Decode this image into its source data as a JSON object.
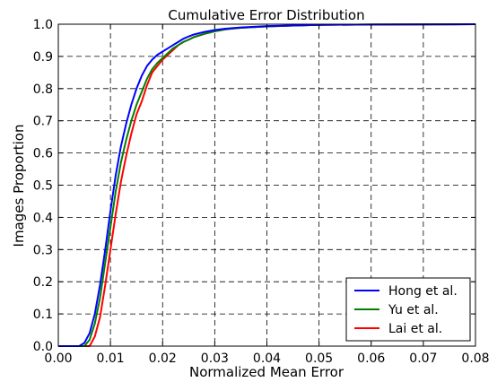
{
  "chart_data": {
    "type": "line",
    "title": "Cumulative Error Distribution",
    "xlabel": "Normalized Mean Error",
    "ylabel": "Images Proportion",
    "xlim": [
      0.0,
      0.08
    ],
    "ylim": [
      0.0,
      1.0
    ],
    "xticks": [
      "0.00",
      "0.01",
      "0.02",
      "0.03",
      "0.04",
      "0.05",
      "0.06",
      "0.07",
      "0.08"
    ],
    "yticks": [
      "0.0",
      "0.1",
      "0.2",
      "0.3",
      "0.4",
      "0.5",
      "0.6",
      "0.7",
      "0.8",
      "0.9",
      "1.0"
    ],
    "grid": true,
    "legend_position": "lower-right",
    "series": [
      {
        "name": "Hong et al.",
        "color": "#0000ff",
        "x": [
          0.0,
          0.004,
          0.005,
          0.006,
          0.007,
          0.008,
          0.009,
          0.01,
          0.011,
          0.012,
          0.013,
          0.014,
          0.015,
          0.016,
          0.017,
          0.018,
          0.019,
          0.02,
          0.021,
          0.022,
          0.023,
          0.024,
          0.025,
          0.026,
          0.028,
          0.03,
          0.032,
          0.035,
          0.04,
          0.045,
          0.05,
          0.06,
          0.08
        ],
        "y": [
          0.0,
          0.0,
          0.01,
          0.04,
          0.1,
          0.19,
          0.3,
          0.42,
          0.53,
          0.62,
          0.69,
          0.75,
          0.8,
          0.84,
          0.87,
          0.89,
          0.905,
          0.915,
          0.925,
          0.935,
          0.945,
          0.955,
          0.962,
          0.968,
          0.976,
          0.982,
          0.986,
          0.99,
          0.994,
          0.996,
          0.998,
          0.999,
          1.0
        ]
      },
      {
        "name": "Yu et al.",
        "color": "#008000",
        "x": [
          0.0,
          0.005,
          0.006,
          0.007,
          0.008,
          0.009,
          0.01,
          0.011,
          0.012,
          0.013,
          0.014,
          0.015,
          0.016,
          0.017,
          0.018,
          0.019,
          0.02,
          0.021,
          0.022,
          0.023,
          0.024,
          0.025,
          0.026,
          0.028,
          0.03,
          0.032,
          0.035,
          0.04,
          0.045,
          0.05,
          0.06,
          0.08
        ],
        "y": [
          0.0,
          0.0,
          0.02,
          0.07,
          0.15,
          0.26,
          0.37,
          0.48,
          0.57,
          0.64,
          0.7,
          0.75,
          0.79,
          0.83,
          0.86,
          0.88,
          0.895,
          0.91,
          0.925,
          0.935,
          0.945,
          0.952,
          0.96,
          0.97,
          0.978,
          0.984,
          0.989,
          0.993,
          0.996,
          0.998,
          0.999,
          1.0
        ]
      },
      {
        "name": "Lai et al.",
        "color": "#ff0000",
        "x": [
          0.0,
          0.006,
          0.007,
          0.008,
          0.009,
          0.01,
          0.011,
          0.012,
          0.013,
          0.014,
          0.015,
          0.016,
          0.017,
          0.018,
          0.019,
          0.02,
          0.021,
          0.022,
          0.023,
          0.024,
          0.025,
          0.026,
          0.028,
          0.03,
          0.032,
          0.035,
          0.04,
          0.045,
          0.05,
          0.06,
          0.08
        ],
        "y": [
          0.0,
          0.0,
          0.03,
          0.09,
          0.19,
          0.3,
          0.41,
          0.51,
          0.59,
          0.66,
          0.72,
          0.76,
          0.81,
          0.85,
          0.87,
          0.89,
          0.905,
          0.92,
          0.935,
          0.945,
          0.952,
          0.96,
          0.97,
          0.978,
          0.984,
          0.989,
          0.993,
          0.996,
          0.998,
          0.999,
          1.0
        ]
      }
    ]
  }
}
